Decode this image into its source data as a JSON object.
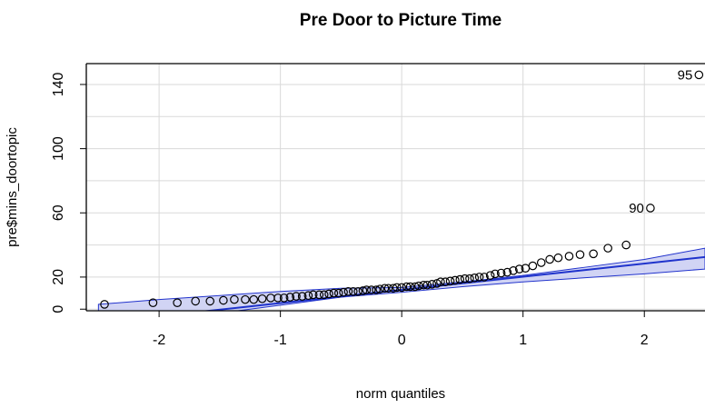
{
  "chart_data": {
    "type": "scatter",
    "title": "Pre Door to Picture Time",
    "xlabel": "norm quantiles",
    "ylabel": "pre$mins_doortopic",
    "xlim": [
      -2.6,
      2.5
    ],
    "ylim": [
      -1,
      153
    ],
    "x_ticks": [
      -2,
      -1,
      0,
      1,
      2
    ],
    "y_ticks": [
      0,
      20,
      60,
      100,
      140
    ],
    "grid": true,
    "reference_line": {
      "intercept": 12,
      "slope": 8.2
    },
    "confidence_band": {
      "x": [
        -2.5,
        -2.0,
        -1.5,
        -1.0,
        -0.5,
        0.0,
        0.5,
        1.0,
        1.5,
        2.0,
        2.5
      ],
      "lower": [
        -14,
        -8,
        -2.5,
        2.5,
        7.5,
        10.5,
        14,
        17,
        19.5,
        22,
        25
      ],
      "upper": [
        3,
        6,
        8.5,
        11,
        13,
        13.5,
        17,
        21,
        26,
        31,
        38
      ]
    },
    "points": {
      "x": [
        -2.45,
        -2.05,
        -1.85,
        -1.7,
        -1.58,
        -1.47,
        -1.38,
        -1.29,
        -1.22,
        -1.15,
        -1.08,
        -1.02,
        -0.97,
        -0.92,
        -0.87,
        -0.82,
        -0.77,
        -0.73,
        -0.68,
        -0.64,
        -0.6,
        -0.56,
        -0.52,
        -0.48,
        -0.44,
        -0.4,
        -0.36,
        -0.32,
        -0.29,
        -0.25,
        -0.21,
        -0.18,
        -0.14,
        -0.11,
        -0.07,
        -0.04,
        0.0,
        0.04,
        0.07,
        0.11,
        0.14,
        0.18,
        0.21,
        0.25,
        0.29,
        0.32,
        0.36,
        0.4,
        0.44,
        0.48,
        0.52,
        0.56,
        0.6,
        0.64,
        0.68,
        0.73,
        0.77,
        0.82,
        0.87,
        0.92,
        0.97,
        1.02,
        1.08,
        1.15,
        1.22,
        1.29,
        1.38,
        1.47,
        1.58,
        1.7,
        1.85,
        2.05,
        2.45
      ],
      "y": [
        3,
        4,
        4,
        5,
        5,
        5.5,
        6,
        6,
        6,
        6.5,
        7,
        7,
        7,
        7.5,
        8,
        8,
        8.5,
        9,
        9,
        9,
        9.5,
        10,
        10,
        10.5,
        11,
        11,
        11,
        11.5,
        12,
        12,
        12,
        12.5,
        13,
        13,
        13,
        13.5,
        13.5,
        14,
        14,
        14,
        14.5,
        15,
        15,
        15.5,
        16,
        17,
        17,
        17.5,
        18,
        18.5,
        19,
        19,
        19.5,
        20,
        20,
        21,
        22,
        22.5,
        23,
        24,
        25,
        25.5,
        27,
        29,
        31,
        32,
        33,
        34,
        34.5,
        38,
        40,
        63,
        146
      ]
    },
    "annotations": [
      {
        "text": "95",
        "x": 2.45,
        "y": 146
      },
      {
        "text": "90",
        "x": 2.05,
        "y": 63
      }
    ]
  }
}
